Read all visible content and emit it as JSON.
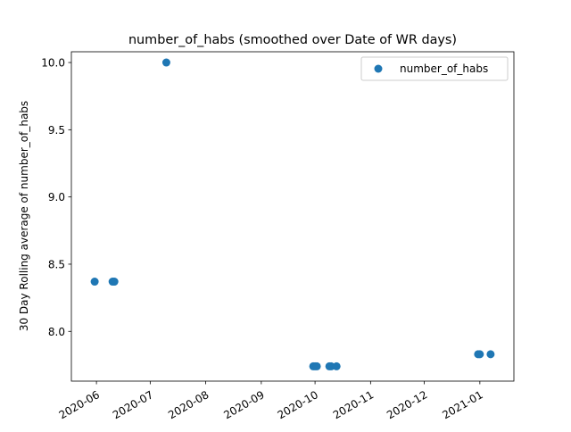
{
  "chart_data": {
    "type": "scatter",
    "title": "number_of_habs (smoothed over Date of WR days)",
    "xlabel": "",
    "ylabel": "30 Day Rolling average of number_of_habs",
    "xlim": [
      "2020-05-18",
      "2021-01-20"
    ],
    "ylim": [
      7.63,
      10.08
    ],
    "x_ticks": [
      "2020-06",
      "2020-07",
      "2020-08",
      "2020-09",
      "2020-10",
      "2020-11",
      "2020-12",
      "2021-01"
    ],
    "y_ticks": [
      "8.0",
      "8.5",
      "9.0",
      "9.5",
      "10.0"
    ],
    "legend": {
      "position": "top-right",
      "label": "number_of_habs"
    },
    "series": [
      {
        "name": "number_of_habs",
        "color": "#1f77b4",
        "points": [
          {
            "x": "2020-05-31",
            "y": 8.37
          },
          {
            "x": "2020-06-10",
            "y": 8.37
          },
          {
            "x": "2020-06-11",
            "y": 8.37
          },
          {
            "x": "2020-07-10",
            "y": 10.0
          },
          {
            "x": "2020-09-30",
            "y": 7.74
          },
          {
            "x": "2020-10-01",
            "y": 7.74
          },
          {
            "x": "2020-10-02",
            "y": 7.74
          },
          {
            "x": "2020-10-09",
            "y": 7.74
          },
          {
            "x": "2020-10-10",
            "y": 7.74
          },
          {
            "x": "2020-10-13",
            "y": 7.74
          },
          {
            "x": "2020-12-31",
            "y": 7.83
          },
          {
            "x": "2021-01-01",
            "y": 7.83
          },
          {
            "x": "2021-01-07",
            "y": 7.83
          }
        ]
      }
    ],
    "grid": false
  }
}
